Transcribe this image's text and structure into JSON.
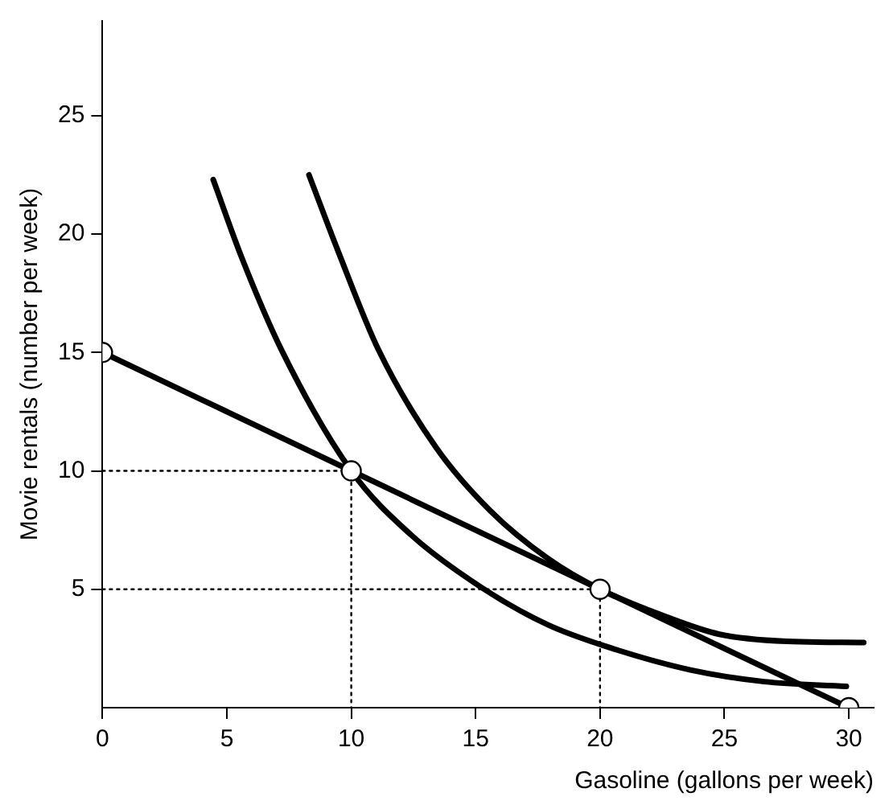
{
  "chart_data": {
    "type": "line",
    "xlabel": "Gasoline (gallons per week)",
    "ylabel": "Movie rentals (number per week)",
    "xlim": [
      0,
      31
    ],
    "ylim": [
      0,
      29
    ],
    "xticks": [
      0,
      5,
      10,
      15,
      20,
      25,
      30
    ],
    "yticks": [
      5,
      10,
      15,
      20,
      25
    ],
    "series": [
      {
        "type": "line",
        "color": "#000000",
        "marker": "none",
        "line_style": "dotted",
        "x": [
          0,
          10,
          10
        ],
        "values": [
          10,
          10,
          0
        ]
      },
      {
        "type": "line",
        "color": "#000000",
        "marker": "none",
        "line_style": "dotted",
        "x": [
          0,
          20,
          20
        ],
        "values": [
          5,
          5,
          0
        ]
      },
      {
        "type": "line",
        "color": "#000000",
        "marker": "none",
        "line_style": "solid",
        "x": [
          4.45,
          5.6,
          7.2,
          10,
          12.4,
          15.2,
          17.9,
          20.2,
          23.6,
          26.6,
          29.9
        ],
        "values": [
          22.3,
          19,
          15.1,
          10,
          7.3,
          5.1,
          3.5,
          2.6,
          1.6,
          1.1,
          0.9
        ]
      },
      {
        "type": "line",
        "color": "#000000",
        "marker": "none",
        "line_style": "solid",
        "x": [
          8.3,
          9.5,
          11.1,
          13.4,
          15.6,
          17.9,
          20,
          22.5,
          24.8,
          27.5,
          30.6
        ],
        "values": [
          22.5,
          19.2,
          15.1,
          11,
          8.3,
          6.3,
          5,
          3.9,
          3.1,
          2.8,
          2.75
        ]
      },
      {
        "type": "line",
        "color": "#000000",
        "marker": "circle",
        "line_style": "solid",
        "x": [
          0,
          10,
          20,
          30
        ],
        "values": [
          15,
          10,
          5,
          0
        ]
      }
    ]
  }
}
